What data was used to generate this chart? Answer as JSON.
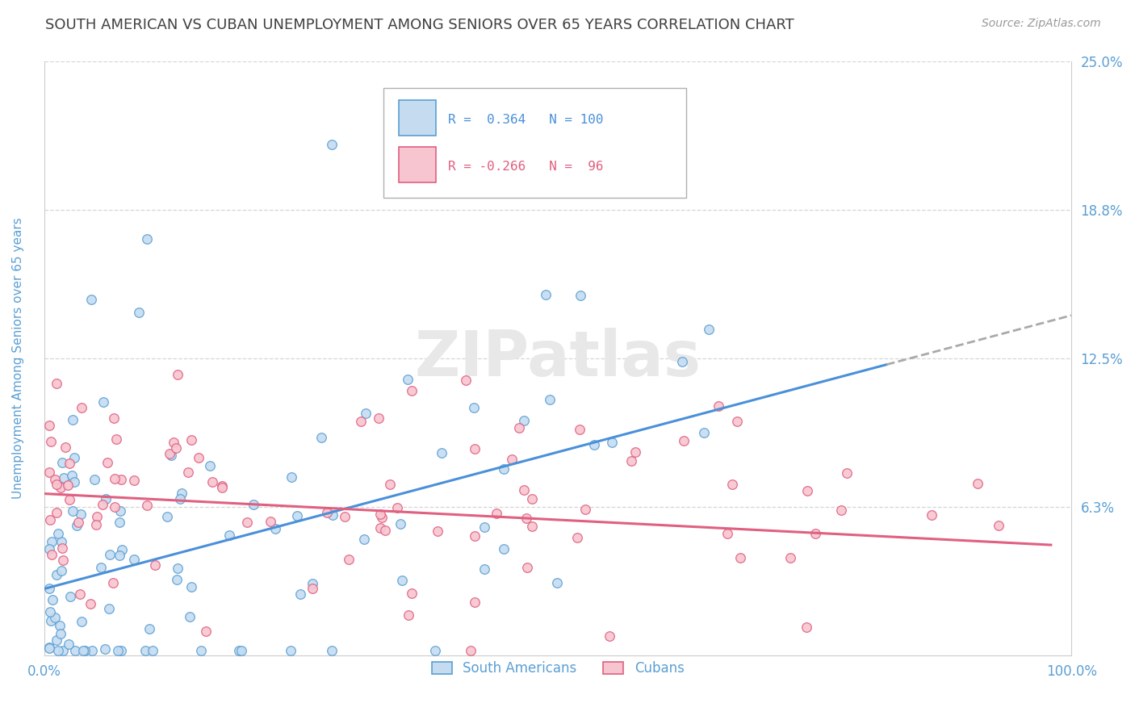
{
  "title": "SOUTH AMERICAN VS CUBAN UNEMPLOYMENT AMONG SENIORS OVER 65 YEARS CORRELATION CHART",
  "source": "Source: ZipAtlas.com",
  "ylabel": "Unemployment Among Seniors over 65 years",
  "xmin": 0.0,
  "xmax": 1.0,
  "ymin": 0.0,
  "ymax": 0.25,
  "yticks": [
    0.0,
    0.0625,
    0.125,
    0.1875,
    0.25
  ],
  "ytick_labels_right": [
    "",
    "6.3%",
    "12.5%",
    "18.8%",
    "25.0%"
  ],
  "xticks": [
    0.0,
    1.0
  ],
  "xtick_labels": [
    "0.0%",
    "100.0%"
  ],
  "south_scatter_face": "#c5dcf0",
  "south_scatter_edge": "#5a9fd4",
  "cuban_scatter_face": "#f7c5d0",
  "cuban_scatter_edge": "#e06080",
  "south_line_color": "#4a90d9",
  "cuban_line_color": "#e06080",
  "ext_line_color": "#aaaaaa",
  "background_color": "#ffffff",
  "grid_color": "#cccccc",
  "title_color": "#404040",
  "axis_label_color": "#5a9fd4",
  "watermark_color": "#e8e8e8",
  "watermark": "ZIPatlas",
  "south_slope": 0.115,
  "south_intercept": 0.028,
  "south_line_end": 0.82,
  "cuban_slope": -0.022,
  "cuban_intercept": 0.068,
  "seed": 42
}
